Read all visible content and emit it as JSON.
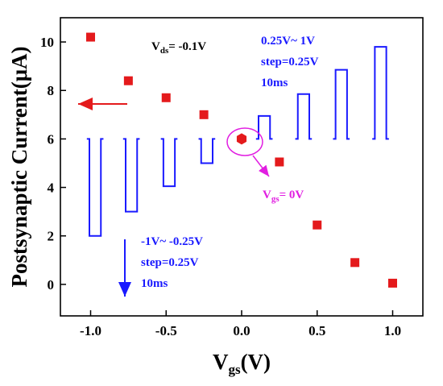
{
  "chart_data": {
    "type": "scatter",
    "title": "",
    "xlabel": {
      "main": "V",
      "sub": "gs",
      "tail": "(V)"
    },
    "ylabel": "Postsynaptic Current(μA)",
    "xlim": [
      -1.2,
      1.2
    ],
    "ylim": [
      -1.3,
      11.0
    ],
    "xticks": [
      -1.0,
      -0.5,
      0.0,
      0.5,
      1.0
    ],
    "xticklabels": [
      "-1.0",
      "-0.5",
      "0.0",
      "0.5",
      "1.0"
    ],
    "yticks": [
      0,
      2,
      4,
      6,
      8,
      10
    ],
    "yticklabels": [
      "0",
      "2",
      "4",
      "6",
      "8",
      "10"
    ],
    "grid": false,
    "colors": {
      "points": "#e41a1c",
      "pulses": "#1a1aff",
      "zero": "#e11ee1",
      "text": "#000000"
    },
    "series": [
      {
        "marker": "square",
        "x": [
          -1.0,
          -0.75,
          -0.5,
          -0.25,
          0.25,
          0.5,
          0.75,
          1.0
        ],
        "y": [
          10.2,
          8.4,
          7.7,
          7.0,
          5.05,
          2.45,
          0.9,
          0.05
        ]
      },
      {
        "marker": "hexagon",
        "x": [
          0.0
        ],
        "y": [
          6.0
        ]
      }
    ],
    "pulses": {
      "baseline": 6.0,
      "centers": [
        -0.97,
        -0.73,
        -0.48,
        -0.23,
        0.15,
        0.41,
        0.66,
        0.92
      ],
      "levels": [
        2.0,
        3.0,
        4.05,
        5.0,
        6.95,
        7.85,
        8.85,
        9.8
      ]
    },
    "annotations": {
      "vds": {
        "main": "V",
        "sub": "ds",
        "tail": "= -0.1V"
      },
      "positive": [
        "0.25V~ 1V",
        "step=0.25V",
        "10ms"
      ],
      "negative": [
        "-1V~ -0.25V",
        "step=0.25V",
        "10ms"
      ],
      "vgs_zero": {
        "main": "V",
        "sub": "gs",
        "tail": "= 0V"
      }
    }
  }
}
